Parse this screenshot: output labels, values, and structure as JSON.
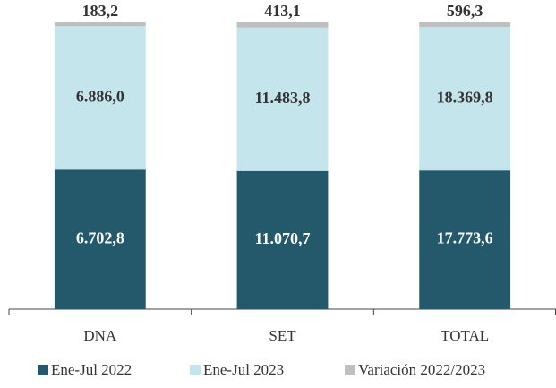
{
  "chart_data": {
    "type": "bar",
    "stacking": "percent",
    "categories": [
      "DNA",
      "SET",
      "TOTAL"
    ],
    "series": [
      {
        "name": "Ene-Jul 2022",
        "color": "#23596a",
        "values": [
          6702.8,
          11070.7,
          17773.6
        ],
        "value_labels": [
          "6.702,8",
          "11.070,7",
          "17.773,6"
        ]
      },
      {
        "name": "Ene-Jul 2023",
        "color": "#c5e5ed",
        "values": [
          6886.0,
          11483.8,
          18369.8
        ],
        "value_labels": [
          "6.886,0",
          "11.483,8",
          "18.369,8"
        ]
      },
      {
        "name": "Variación 2022/2023",
        "color": "#bfbfbf",
        "values": [
          183.2,
          413.1,
          596.3
        ],
        "value_labels": [
          "183,2",
          "413,1",
          "596,3"
        ]
      }
    ],
    "legend": "bottom"
  }
}
